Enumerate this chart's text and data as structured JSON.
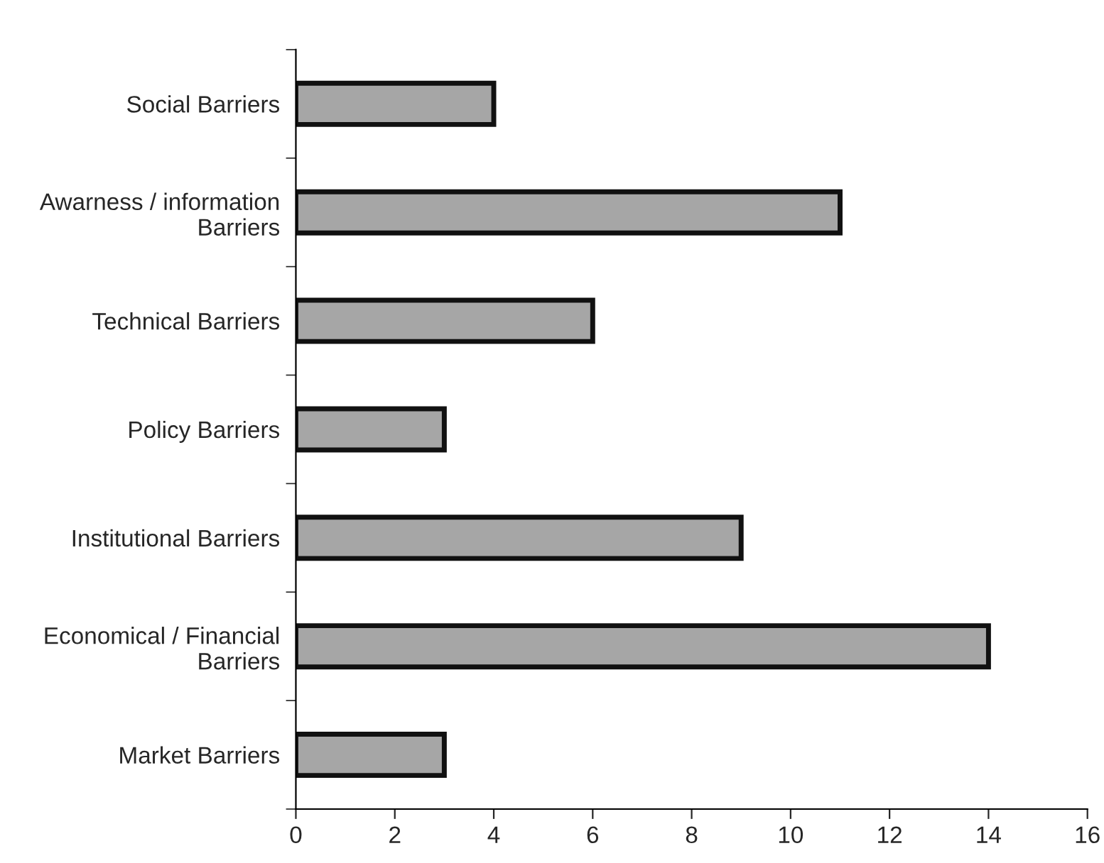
{
  "chart_data": {
    "type": "bar",
    "orientation": "horizontal",
    "categories": [
      "Social Barriers",
      "Awarness / information\nBarriers",
      "Technical Barriers",
      "Policy Barriers",
      "Institutional Barriers",
      "Economical / Financial\nBarriers",
      "Market Barriers"
    ],
    "values": [
      4,
      11,
      6,
      3,
      9,
      14,
      3
    ],
    "color": "#a6a6a6",
    "xlim": [
      0,
      16
    ],
    "xticks": [
      0,
      2,
      4,
      6,
      8,
      10,
      12,
      14,
      16
    ],
    "grid": false,
    "legend": false
  }
}
